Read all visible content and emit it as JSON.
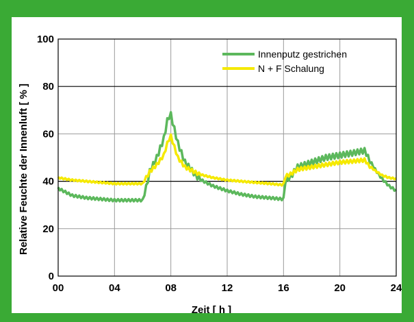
{
  "theme": {
    "frame": "#3aaa35",
    "panel": "#ffffff",
    "grid": "#9a9a9a",
    "axis": "#000000"
  },
  "chart_data": {
    "type": "line",
    "title": "",
    "xlabel": "Zeit [ h ]",
    "ylabel": "Relative Feuchte der Innenluft [ % ]",
    "xlim": [
      0,
      24
    ],
    "ylim": [
      0,
      100
    ],
    "x_ticks": [
      0,
      4,
      8,
      12,
      16,
      20,
      24
    ],
    "x_tick_labels": [
      "00",
      "04",
      "08",
      "12",
      "16",
      "20",
      "24"
    ],
    "y_ticks": [
      0,
      20,
      40,
      60,
      80,
      100
    ],
    "y_tick_labels": [
      "0",
      "20",
      "40",
      "60",
      "80",
      "100"
    ],
    "grid": true,
    "legend_position": "top-right",
    "series": [
      {
        "name": "Innenputz gestrichen",
        "color": "#5cb85c",
        "ripple": 1.6,
        "x": [
          0,
          1,
          2,
          3,
          4,
          5,
          6,
          6.2,
          6.5,
          7,
          7.5,
          7.8,
          8,
          8.5,
          9,
          10,
          11,
          12,
          13,
          14,
          15,
          15.9,
          16,
          16.1,
          16.5,
          17,
          18,
          19,
          20,
          21,
          21.8,
          22,
          22.5,
          23,
          23.5,
          24
        ],
        "y": [
          37,
          34,
          33,
          32.5,
          32,
          32,
          32,
          36,
          44,
          50,
          58,
          67,
          68,
          56,
          48,
          41,
          38,
          36,
          34.5,
          33.5,
          33,
          32.5,
          32,
          40,
          42,
          46,
          48,
          50,
          51,
          52,
          53,
          50,
          45,
          41,
          38,
          36
        ]
      },
      {
        "name": "N + F Schalung",
        "color": "#f5e900",
        "ripple": 1.0,
        "x": [
          0,
          1,
          2,
          3,
          4,
          5,
          6,
          6.2,
          6.5,
          7,
          7.5,
          7.8,
          8,
          8.5,
          9,
          10,
          11,
          12,
          13,
          14,
          15,
          15.9,
          16,
          16.1,
          16.5,
          17,
          18,
          19,
          20,
          21,
          21.8,
          22,
          22.5,
          23,
          23.5,
          24
        ],
        "y": [
          41.5,
          40.5,
          40,
          39.5,
          39,
          39,
          39,
          41,
          44,
          47,
          51,
          57,
          59,
          50,
          46,
          43,
          41.5,
          40.5,
          40,
          39.5,
          39,
          38.5,
          38.5,
          42,
          43,
          45,
          46,
          47,
          48,
          48.5,
          49,
          47,
          44.5,
          42.5,
          41.5,
          41
        ]
      }
    ]
  }
}
